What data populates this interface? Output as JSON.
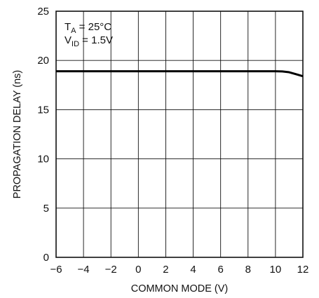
{
  "chart_data": {
    "type": "line",
    "title": "",
    "xlabel": "COMMON MODE (V)",
    "ylabel": "PROPAGATION DELAY (ns)",
    "xlim": [
      -6,
      12
    ],
    "ylim": [
      0,
      25
    ],
    "x_ticks": [
      "−6",
      "−4",
      "−2",
      "0",
      "2",
      "4",
      "6",
      "8",
      "10",
      "12"
    ],
    "y_ticks": [
      "0",
      "5",
      "10",
      "15",
      "20",
      "25"
    ],
    "grid": true,
    "annotation": {
      "line1_main": "T",
      "line1_sub": "A",
      "line1_rest": " = 25°C",
      "line2_main": "V",
      "line2_sub": "ID",
      "line2_rest": " = 1.5V"
    },
    "series": [
      {
        "x": [
          -6,
          -4,
          -2,
          0,
          2,
          4,
          6,
          8,
          10,
          10.5,
          11,
          11.5,
          12
        ],
        "y": [
          18.9,
          18.9,
          18.9,
          18.9,
          18.9,
          18.9,
          18.9,
          18.9,
          18.9,
          18.88,
          18.8,
          18.6,
          18.4
        ]
      }
    ]
  }
}
